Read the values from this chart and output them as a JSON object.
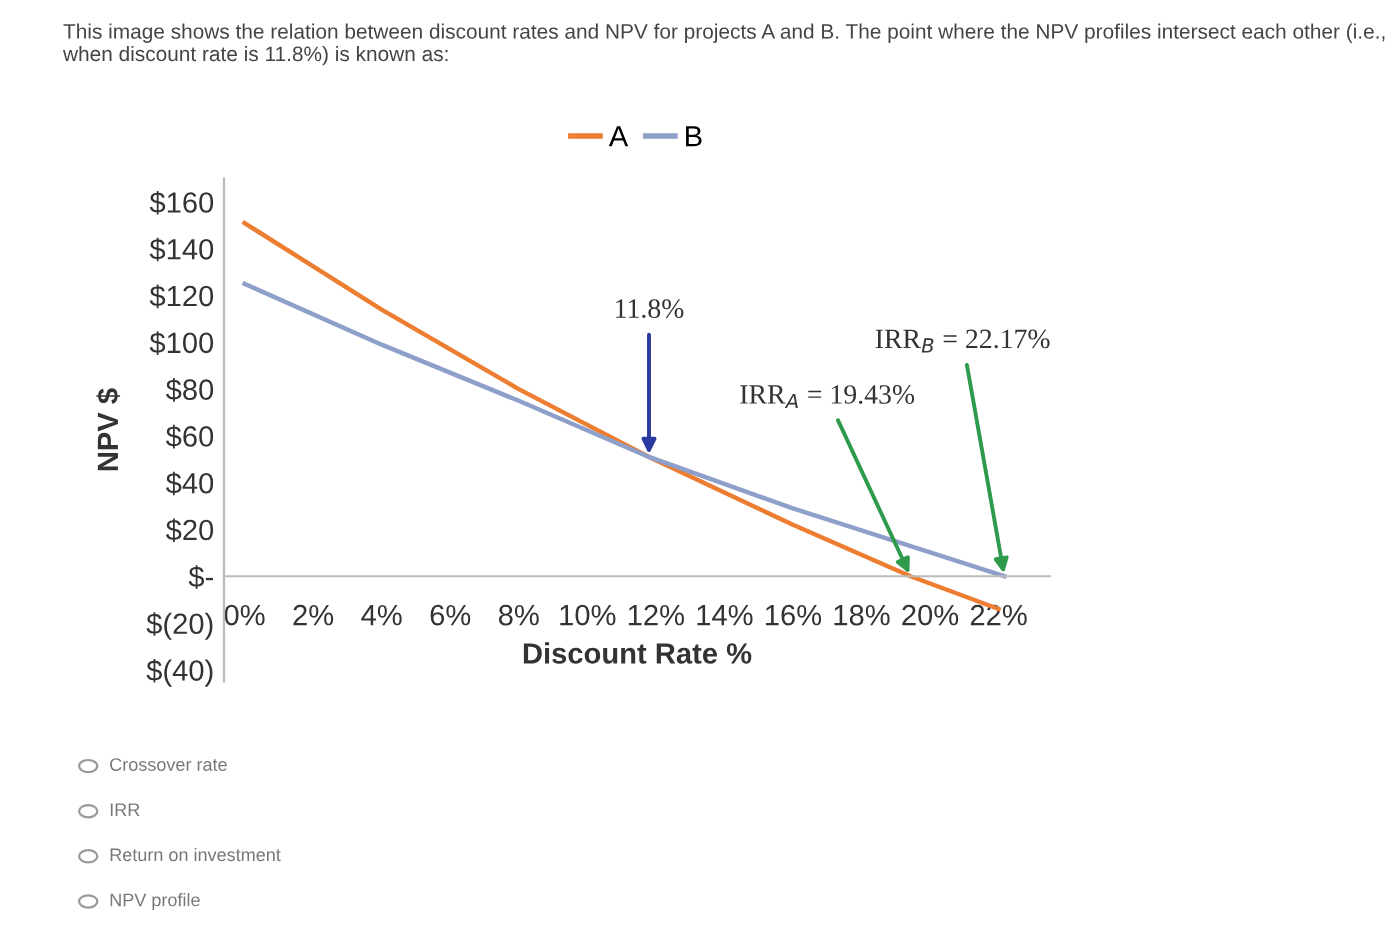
{
  "chart_data": {
    "type": "line",
    "title": "This image shows the relation between discount rates and NPV for projects A and B. The point where the NPV profiles intersect each other (i.e., when discount rate is 11.8%) is known as:",
    "xlabel": "Discount Rate %",
    "ylabel": "NPV $",
    "series": [
      {
        "name": "A",
        "color": "#ed7d31",
        "x": [
          0,
          4,
          8,
          11.8,
          16,
          19.43,
          22
        ],
        "values": [
          151,
          114,
          80,
          51,
          22,
          0,
          -14
        ]
      },
      {
        "name": "B",
        "color": "#8e9fc9",
        "x": [
          0,
          4,
          8,
          11.8,
          16,
          22.17
        ],
        "values": [
          125,
          99,
          75,
          51,
          29,
          0
        ]
      }
    ],
    "xlim": [
      -0.6,
      23.5
    ],
    "ylim": [
      -45,
      170
    ],
    "xticks": [
      {
        "value": 0,
        "label": "0%"
      },
      {
        "value": 2,
        "label": "2%"
      },
      {
        "value": 4,
        "label": "4%"
      },
      {
        "value": 6,
        "label": "6%"
      },
      {
        "value": 8,
        "label": "8%"
      },
      {
        "value": 10,
        "label": "10%"
      },
      {
        "value": 12,
        "label": "12%"
      },
      {
        "value": 14,
        "label": "14%"
      },
      {
        "value": 16,
        "label": "16%"
      },
      {
        "value": 18,
        "label": "18%"
      },
      {
        "value": 20,
        "label": "20%"
      },
      {
        "value": 22,
        "label": "22%"
      }
    ],
    "yticks": [
      {
        "value": 160,
        "label": "$160"
      },
      {
        "value": 140,
        "label": "$140"
      },
      {
        "value": 120,
        "label": "$120"
      },
      {
        "value": 100,
        "label": "$100"
      },
      {
        "value": 80,
        "label": "$80"
      },
      {
        "value": 60,
        "label": "$60"
      },
      {
        "value": 40,
        "label": "$40"
      },
      {
        "value": 20,
        "label": "$20"
      },
      {
        "value": 0,
        "label": "$-"
      },
      {
        "value": -20,
        "label": "$(20)"
      },
      {
        "value": -40,
        "label": "$(40)"
      }
    ],
    "annotations": [
      {
        "text": "11.8%",
        "x": 11.8,
        "y": 51
      },
      {
        "text": "IRR$_{A}$ = 19.43%",
        "x": 19.43,
        "y": 0
      },
      {
        "text": "IRR$_{B}$ = 22.17%",
        "x": 22.17,
        "y": 0
      },
      "Crossover rate",
      "IRR",
      "Return on investment",
      "NPV profile"
    ],
    "legend": "top",
    "grid": false,
    "marker": "none",
    "line_style": "solid"
  }
}
